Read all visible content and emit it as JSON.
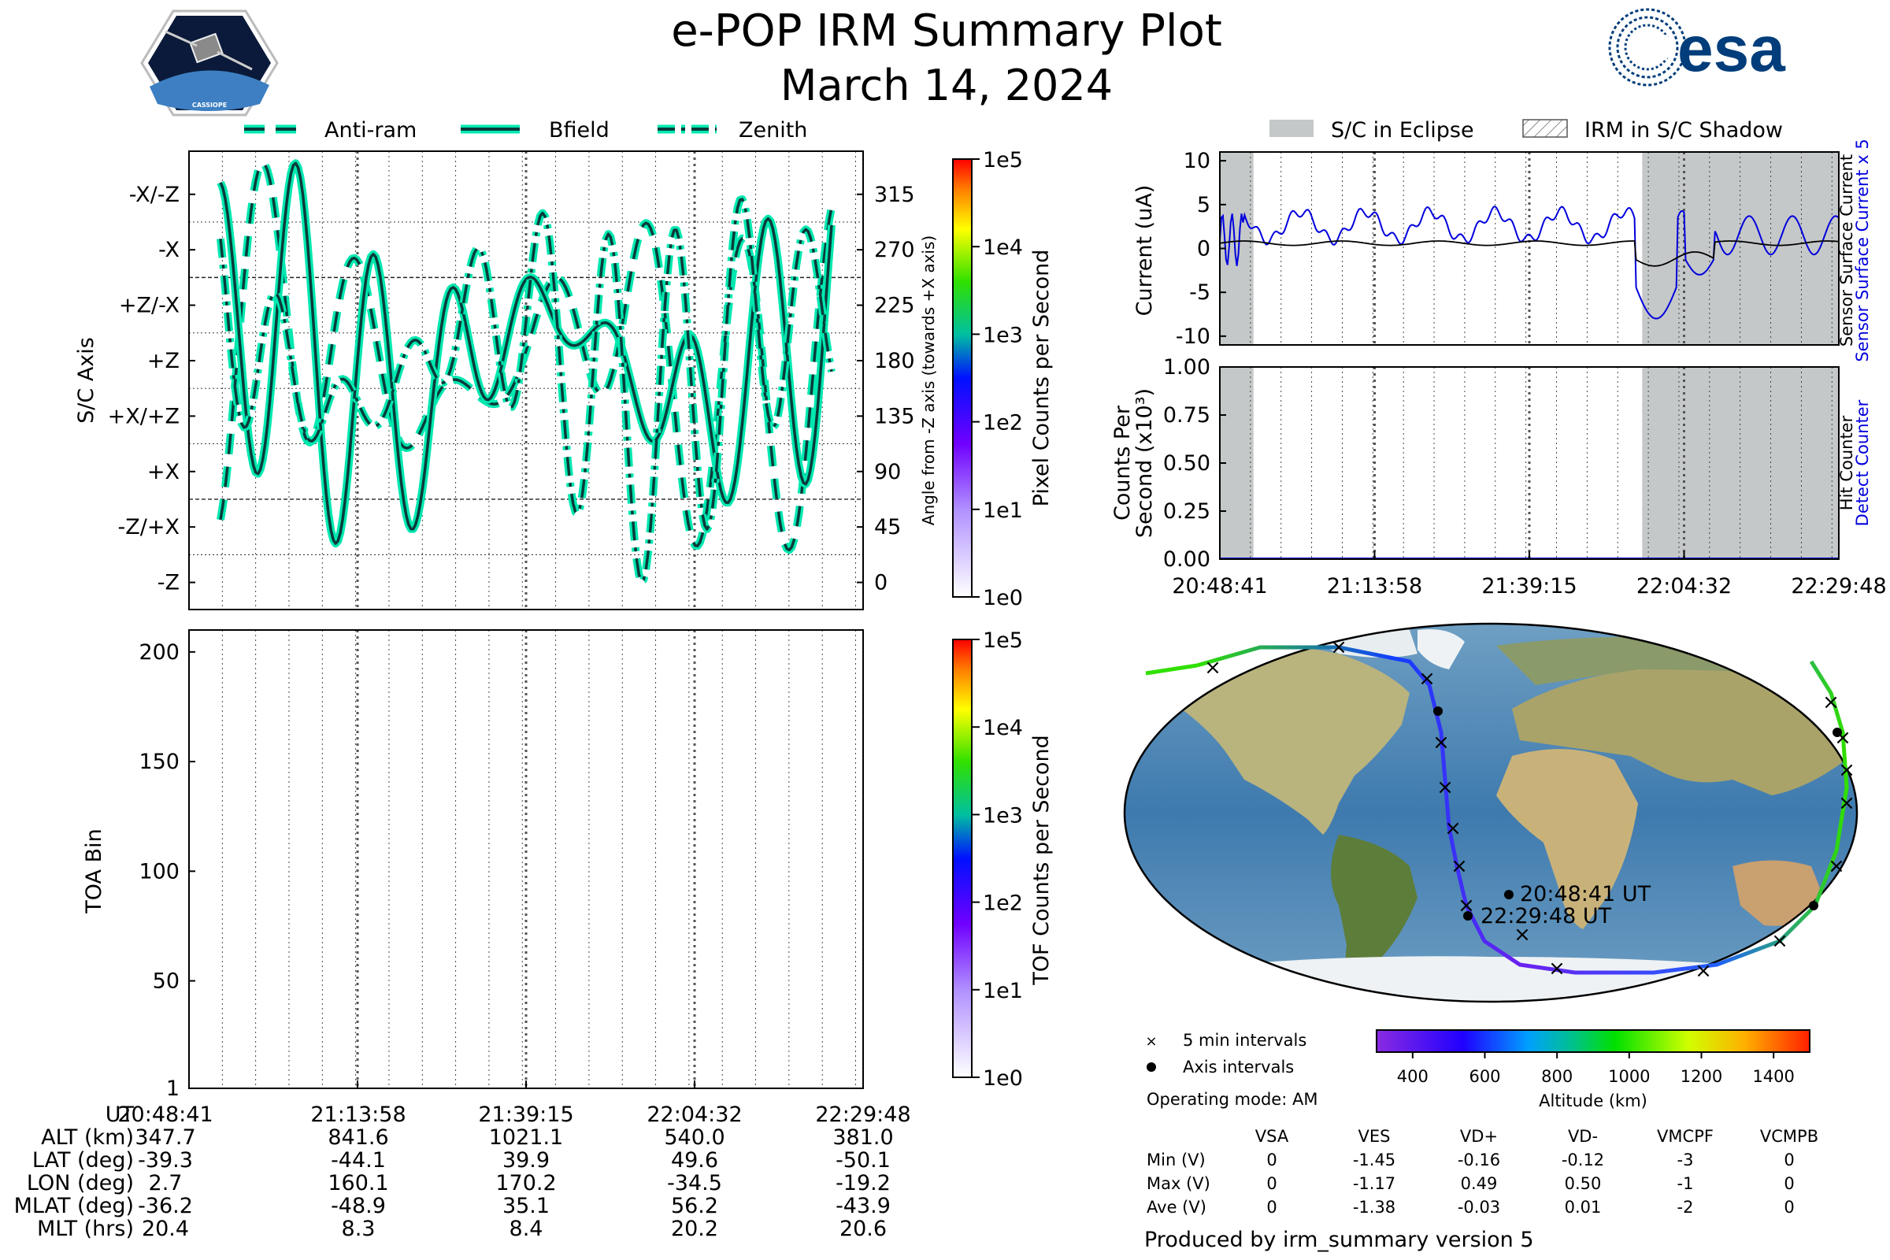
{
  "title": "e-POP IRM Summary Plot",
  "subtitle": "March 14, 2024",
  "logos": {
    "left": "cassiope-mission-badge",
    "right_text": "esa"
  },
  "colors": {
    "trace_teal": "#00e8b0",
    "trace_dark": "#0a3a3a",
    "current_blue": "#0000dd",
    "eclipse_gray": "#c5c8c8",
    "esa_blue": "#003d7a"
  },
  "chart_data": [
    {
      "type": "line",
      "panel": "sc-axis-angles",
      "legend": [
        "Anti-ram",
        "Bfield",
        "Zenith"
      ],
      "legend_placement": "top",
      "ylabel": "S/C Axis",
      "y_ticklabels": [
        "-X/-Z",
        "-X",
        "+Z/-X",
        "+Z",
        "+X/+Z",
        "+X",
        "-Z/+X",
        "-Z"
      ],
      "y2label": "Angle from -Z axis (towards +X axis)",
      "y2_ticks": [
        315,
        270,
        225,
        180,
        135,
        90,
        45,
        0
      ],
      "ylim": [
        -22,
        350
      ],
      "series": [
        {
          "name": "Anti-ram",
          "style": "dashed",
          "values": []
        },
        {
          "name": "Bfield",
          "style": "solid",
          "values": []
        },
        {
          "name": "Zenith",
          "style": "dash-dot",
          "values": []
        }
      ],
      "colorbar": {
        "label": "Pixel Counts per Second",
        "ticks": [
          "1e0",
          "1e1",
          "1e2",
          "1e3",
          "1e4",
          "1e5"
        ]
      }
    },
    {
      "type": "heatmap",
      "panel": "toa-spectrogram",
      "ylabel": "TOA Bin",
      "y_ticks": [
        1,
        50,
        100,
        150,
        200
      ],
      "ylim": [
        1,
        210
      ],
      "x_ticklabels": [
        "20:48:41",
        "21:13:58",
        "21:39:15",
        "22:04:32",
        "22:29:48"
      ],
      "colorbar": {
        "label": "TOF Counts per Second",
        "ticks": [
          "1e0",
          "1e1",
          "1e2",
          "1e3",
          "1e4",
          "1e5"
        ]
      }
    },
    {
      "type": "line",
      "panel": "sensor-current",
      "legend": [
        "S/C in Eclipse",
        "IRM in S/C Shadow"
      ],
      "ylabel": "Current (uA)",
      "y_ticks": [
        10,
        5,
        0,
        -5,
        -10
      ],
      "ylim": [
        -11,
        11
      ],
      "right_labels": [
        "Sensor Surface Current x 5",
        "Sensor Surface Current"
      ],
      "eclipse_intervals_minutes": [
        [
          0,
          5.5
        ],
        [
          69,
          101
        ]
      ],
      "series": [
        {
          "name": "Sensor Surface Current x 5",
          "color": "#0000dd"
        },
        {
          "name": "Sensor Surface Current",
          "color": "#000000"
        }
      ]
    },
    {
      "type": "line",
      "panel": "hit-counter",
      "ylabel": "Counts Per Second (x10³)",
      "y_ticklabels": [
        "1.00",
        "0.75",
        "0.50",
        "0.25",
        "0.00"
      ],
      "ylim": [
        0,
        1
      ],
      "right_labels": [
        "Detect Counter",
        "Hit Counter"
      ],
      "x_ticklabels": [
        "20:48:41",
        "21:13:58",
        "21:39:15",
        "22:04:32",
        "22:29:48"
      ],
      "series": [
        {
          "name": "Detect Counter",
          "values": [
            0,
            0,
            0,
            0,
            0
          ]
        }
      ]
    },
    {
      "type": "scatter",
      "panel": "orbit-track-map",
      "labels": [
        "20:48:41 UT",
        "22:29:48 UT"
      ],
      "legend": [
        "5 min intervals",
        "Axis intervals"
      ],
      "colorbar": {
        "label": "Altitude (km)",
        "ticks": [
          400,
          600,
          800,
          1000,
          1200,
          1400
        ],
        "range": [
          300,
          1500
        ]
      }
    }
  ],
  "axis_table": {
    "row_labels": [
      "UT",
      "ALT (km)",
      "LAT (deg)",
      "LON (deg)",
      "MLAT (deg)",
      "MLT (hrs)"
    ],
    "columns": [
      [
        "20:48:41",
        "347.7",
        "-39.3",
        "2.7",
        "-36.2",
        "20.4"
      ],
      [
        "21:13:58",
        "841.6",
        "-44.1",
        "160.1",
        "-48.9",
        "8.3"
      ],
      [
        "21:39:15",
        "1021.1",
        "39.9",
        "170.2",
        "35.1",
        "8.4"
      ],
      [
        "22:04:32",
        "540.0",
        "49.6",
        "-34.5",
        "56.2",
        "20.2"
      ],
      [
        "22:29:48",
        "381.0",
        "-50.1",
        "-19.2",
        "-43.9",
        "20.6"
      ]
    ]
  },
  "operating_mode": "Operating mode: AM",
  "voltage_table": {
    "headers": [
      "VSA",
      "VES",
      "VD+",
      "VD-",
      "VMCPF",
      "VCMPB"
    ],
    "rows": [
      {
        "label": "Min (V)",
        "values": [
          "0",
          "-1.45",
          "-0.16",
          "-0.12",
          "-3",
          "0"
        ]
      },
      {
        "label": "Max (V)",
        "values": [
          "0",
          "-1.17",
          "0.49",
          "0.50",
          "-1",
          "0"
        ]
      },
      {
        "label": "Ave (V)",
        "values": [
          "0",
          "-1.38",
          "-0.03",
          "0.01",
          "-2",
          "0"
        ]
      }
    ]
  },
  "footer": "Produced by irm_summary version 5"
}
